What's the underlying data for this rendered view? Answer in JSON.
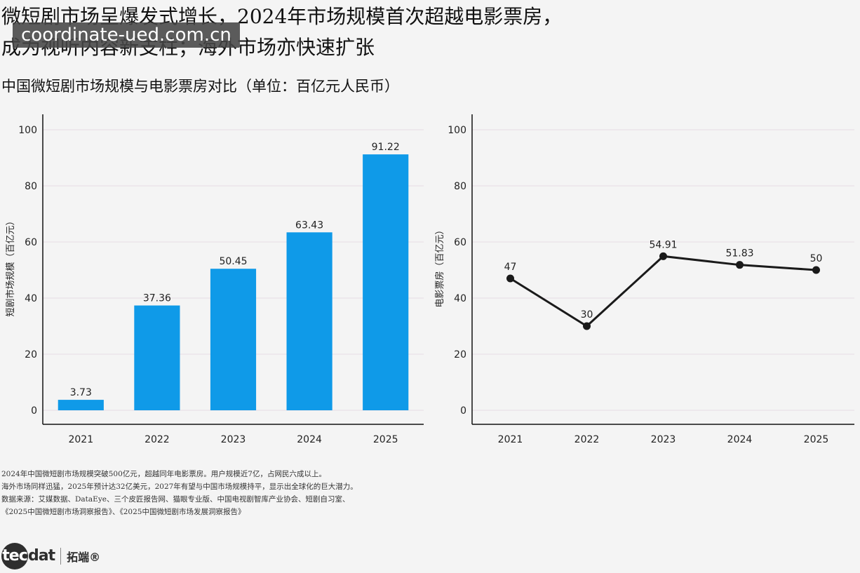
{
  "headline": {
    "line1": "微短剧市场呈爆发式增长，2024年市场规模首次超越电影票房，",
    "line2": "成为视听内容新支柱；海外市场亦快速扩张"
  },
  "watermark": "coordinate-ued.com.cn",
  "subtitle": "中国微短剧市场规模与电影票房对比（单位：百亿元人民币）",
  "chart_data": [
    {
      "type": "bar",
      "categories": [
        "2021",
        "2022",
        "2023",
        "2024",
        "2025"
      ],
      "values": [
        3.73,
        37.36,
        50.45,
        63.43,
        91.22
      ],
      "value_labels": [
        "3.73",
        "37.36",
        "50.45",
        "63.43",
        "91.22"
      ],
      "ylabel": "短剧市场规模（百亿元）",
      "ylim": [
        0,
        100
      ],
      "yticks": [
        0,
        20,
        40,
        60,
        80,
        100
      ],
      "grid": true,
      "color": "#0f9ae8"
    },
    {
      "type": "line",
      "categories": [
        "2021",
        "2022",
        "2023",
        "2024",
        "2025"
      ],
      "values": [
        47,
        30,
        54.91,
        51.83,
        50
      ],
      "value_labels": [
        "47",
        "30",
        "54.91",
        "51.83",
        "50"
      ],
      "ylabel": "电影票房（百亿元）",
      "ylim": [
        0,
        100
      ],
      "yticks": [
        0,
        20,
        40,
        60,
        80,
        100
      ],
      "grid": true,
      "color": "#1a1a1a"
    }
  ],
  "notes": [
    "2024年中国微短剧市场规模突破500亿元，超越同年电影票房。用户规模近7亿，占网民六成以上。",
    "海外市场同样迅猛，2025年预计达32亿美元，2027年有望与中国市场规模持平，显示出全球化的巨大潜力。",
    "数据来源：艾媒数据、DataEye、三个皮匠报告网、猫眼专业版、中国电视剧智库产业协会、短剧自习室、",
    "《2025中国微短剧市场洞察报告》、《2025中国微短剧市场发展洞察报告》"
  ],
  "logo": {
    "circle_text": "tec",
    "text": "dat",
    "cn": "拓端®"
  }
}
